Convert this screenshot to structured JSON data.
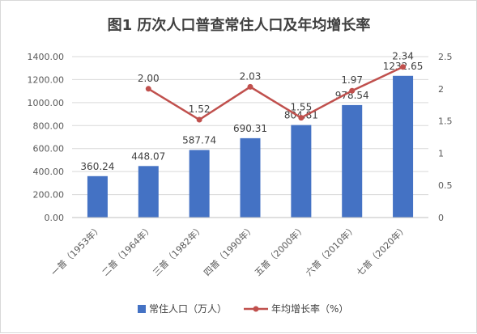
{
  "chart_data": {
    "type": "bar+line",
    "title": "图1 历次人口普查常住人口及年均增长率",
    "categories": [
      "一普（1953年）",
      "二普（1964年）",
      "三普（1982年）",
      "四普（1990年）",
      "五普（2000年）",
      "六普（2010年）",
      "七普（2020年）"
    ],
    "series": [
      {
        "name": "常住人口（万人）",
        "type": "bar",
        "axis": "left",
        "color": "#4472c4",
        "values": [
          360.24,
          448.07,
          587.74,
          690.31,
          804.81,
          978.54,
          1232.65
        ],
        "labels": [
          "360.24",
          "448.07",
          "587.74",
          "690.31",
          "804.81",
          "978.54",
          "1232.65"
        ]
      },
      {
        "name": "年均增长率（%）",
        "type": "line",
        "axis": "right",
        "color": "#c0504d",
        "values": [
          null,
          2.0,
          1.52,
          2.03,
          1.55,
          1.97,
          2.34
        ],
        "labels": [
          null,
          "2.00",
          "1.52",
          "2.03",
          "1.55",
          "1.97",
          "2.34"
        ]
      }
    ],
    "y_left": {
      "min": 0,
      "max": 1400,
      "ticks": [
        0,
        200,
        400,
        600,
        800,
        1000,
        1200,
        1400
      ],
      "tick_labels": [
        "0.00",
        "200.00",
        "400.00",
        "600.00",
        "800.00",
        "1000.00",
        "1200.00",
        "1400.00"
      ]
    },
    "y_right": {
      "min": 0,
      "max": 2.5,
      "ticks": [
        0,
        0.5,
        1,
        1.5,
        2,
        2.5
      ],
      "tick_labels": [
        "0",
        "0.5",
        "1",
        "1.5",
        "2",
        "2.5"
      ]
    },
    "grid": true,
    "legend": "bottom"
  }
}
